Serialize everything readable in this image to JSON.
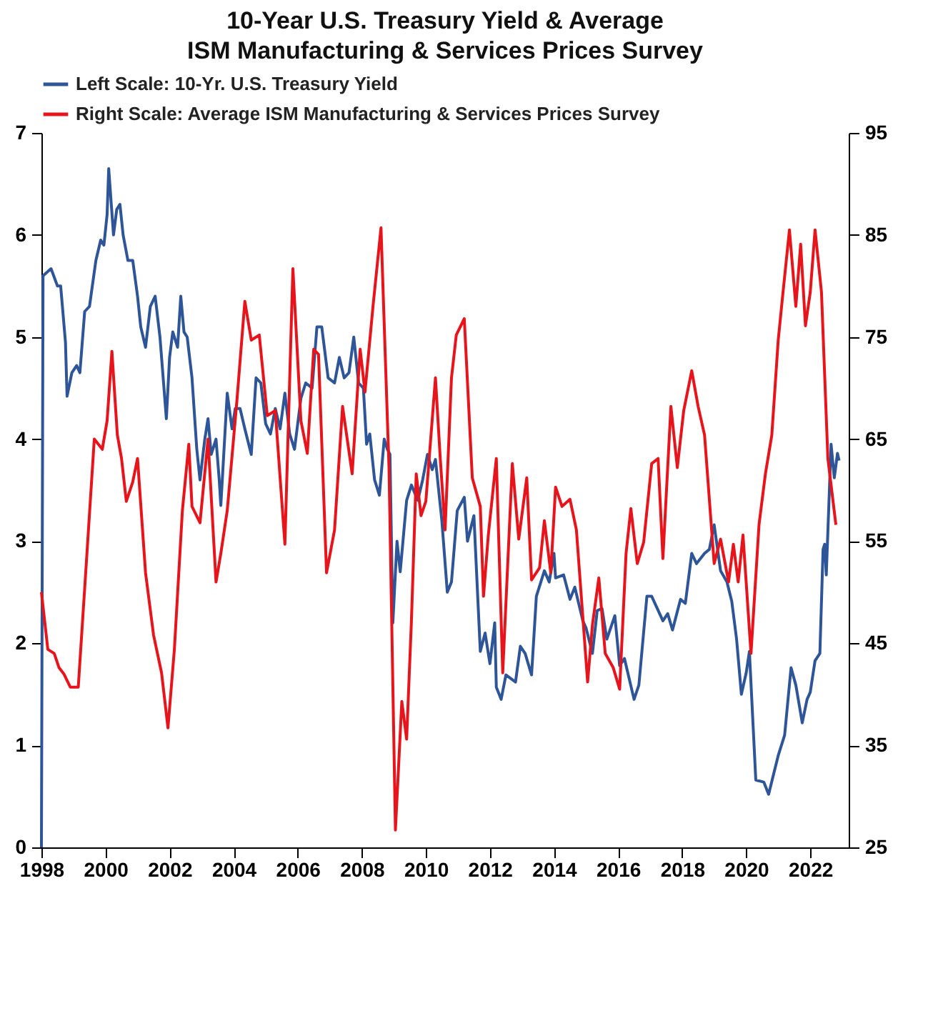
{
  "chart_data": {
    "type": "line",
    "title": "10-Year U.S. Treasury Yield & Average ISM Manufacturing & Services Prices Survey",
    "xlim": [
      1998,
      2023.2
    ],
    "xticks": [
      1998,
      2000,
      2002,
      2004,
      2006,
      2008,
      2010,
      2012,
      2014,
      2016,
      2018,
      2020,
      2022
    ],
    "ylim": [
      0,
      7
    ],
    "yticks": [
      0,
      1,
      2,
      3,
      4,
      5,
      6,
      7
    ],
    "y2lim": [
      25,
      95
    ],
    "y2ticks": [
      25,
      35,
      45,
      55,
      65,
      75,
      85,
      95
    ],
    "grid": false,
    "legend": "top",
    "line_style": "solid",
    "marker": "none",
    "series": [
      {
        "name": "Left Scale: 10-Yr. U.S. Treasury Yield",
        "color": "#2e5597",
        "axis": "y",
        "x": [
          1998.0,
          1998.05,
          1998.3,
          1998.5,
          1998.6,
          1998.75,
          1998.8,
          1998.95,
          1999.1,
          1999.2,
          1999.35,
          1999.5,
          1999.7,
          1999.85,
          1999.95,
          2000.05,
          2000.1,
          2000.25,
          2000.35,
          2000.45,
          2000.55,
          2000.7,
          2000.85,
          2001.0,
          2001.1,
          2001.25,
          2001.4,
          2001.55,
          2001.7,
          2001.9,
          2002.0,
          2002.1,
          2002.25,
          2002.35,
          2002.45,
          2002.55,
          2002.7,
          2002.85,
          2002.95,
          2003.1,
          2003.2,
          2003.3,
          2003.45,
          2003.55,
          2003.6,
          2003.8,
          2003.95,
          2004.05,
          2004.2,
          2004.35,
          2004.55,
          2004.7,
          2004.85,
          2005.0,
          2005.15,
          2005.3,
          2005.45,
          2005.6,
          2005.75,
          2005.9,
          2006.1,
          2006.25,
          2006.45,
          2006.6,
          2006.75,
          2006.95,
          2007.15,
          2007.3,
          2007.45,
          2007.6,
          2007.75,
          2007.9,
          2008.05,
          2008.15,
          2008.25,
          2008.4,
          2008.55,
          2008.7,
          2008.8,
          2008.88,
          2008.97,
          2009.1,
          2009.2,
          2009.4,
          2009.55,
          2009.75,
          2009.9,
          2010.05,
          2010.2,
          2010.3,
          2010.5,
          2010.67,
          2010.8,
          2010.98,
          2011.2,
          2011.3,
          2011.5,
          2011.7,
          2011.85,
          2012.0,
          2012.15,
          2012.2,
          2012.35,
          2012.5,
          2012.8,
          2012.95,
          2013.1,
          2013.3,
          2013.45,
          2013.7,
          2013.85,
          2014.0,
          2014.05,
          2014.3,
          2014.5,
          2014.65,
          2014.9,
          2015.0,
          2015.2,
          2015.35,
          2015.5,
          2015.65,
          2015.9,
          2016.05,
          2016.2,
          2016.5,
          2016.65,
          2016.9,
          2017.05,
          2017.4,
          2017.55,
          2017.7,
          2017.95,
          2018.1,
          2018.3,
          2018.45,
          2018.7,
          2018.85,
          2019.0,
          2019.2,
          2019.4,
          2019.55,
          2019.7,
          2019.85,
          2020.0,
          2020.1,
          2020.3,
          2020.55,
          2020.7,
          2020.85,
          2021.0,
          2021.2,
          2021.4,
          2021.55,
          2021.75,
          2021.9,
          2022.0,
          2022.15,
          2022.3,
          2022.4,
          2022.45,
          2022.5,
          2022.65,
          2022.75,
          2022.85,
          2022.9
        ],
        "values": [
          0,
          5.6,
          5.67,
          5.5,
          5.5,
          4.95,
          4.42,
          4.65,
          4.72,
          4.65,
          5.25,
          5.3,
          5.75,
          5.95,
          5.9,
          6.2,
          6.65,
          6.0,
          6.25,
          6.3,
          6.0,
          5.75,
          5.75,
          5.4,
          5.1,
          4.9,
          5.3,
          5.4,
          5.0,
          4.2,
          4.8,
          5.05,
          4.9,
          5.4,
          5.05,
          5.0,
          4.6,
          3.9,
          3.6,
          4.0,
          4.2,
          3.85,
          4.0,
          3.6,
          3.35,
          4.45,
          4.1,
          4.3,
          4.3,
          4.1,
          3.85,
          4.6,
          4.55,
          4.15,
          4.05,
          4.3,
          4.1,
          4.45,
          4.05,
          3.9,
          4.4,
          4.55,
          4.5,
          5.1,
          5.1,
          4.6,
          4.55,
          4.8,
          4.6,
          4.65,
          5.0,
          4.55,
          4.5,
          3.95,
          4.05,
          3.6,
          3.45,
          4.0,
          3.9,
          3.85,
          2.2,
          3.0,
          2.7,
          3.4,
          3.55,
          3.4,
          3.6,
          3.85,
          3.7,
          3.8,
          3.2,
          2.5,
          2.6,
          3.3,
          3.43,
          3.0,
          3.25,
          1.92,
          2.1,
          1.8,
          2.2,
          1.57,
          1.45,
          1.69,
          1.62,
          1.97,
          1.9,
          1.69,
          2.46,
          2.71,
          2.6,
          2.88,
          2.64,
          2.67,
          2.43,
          2.55,
          2.22,
          2.15,
          1.9,
          2.32,
          2.34,
          2.04,
          2.27,
          1.78,
          1.85,
          1.45,
          1.59,
          2.46,
          2.46,
          2.22,
          2.29,
          2.13,
          2.43,
          2.39,
          2.88,
          2.78,
          2.88,
          2.92,
          3.16,
          2.71,
          2.6,
          2.41,
          2.04,
          1.5,
          1.71,
          1.92,
          0.66,
          0.64,
          0.52,
          0.71,
          0.9,
          1.1,
          1.76,
          1.59,
          1.22,
          1.45,
          1.52,
          1.83,
          1.9,
          2.92,
          2.97,
          2.67,
          3.95,
          3.62,
          3.86,
          3.79
        ]
      },
      {
        "name": "Right Scale: Average ISM Manufacturing & Services Prices Survey",
        "color": "#e8141c",
        "axis": "y2",
        "x": [
          1998.0,
          1998.2,
          1998.4,
          1998.55,
          1998.7,
          1998.9,
          1999.15,
          1999.4,
          1999.65,
          1999.9,
          2000.05,
          2000.2,
          2000.37,
          2000.5,
          2000.65,
          2000.85,
          2001.0,
          2001.25,
          2001.5,
          2001.75,
          2001.95,
          2002.15,
          2002.4,
          2002.6,
          2002.7,
          2002.95,
          2003.2,
          2003.45,
          2003.6,
          2003.8,
          2004.1,
          2004.35,
          2004.55,
          2004.8,
          2005.05,
          2005.3,
          2005.6,
          2005.85,
          2006.1,
          2006.3,
          2006.5,
          2006.65,
          2006.9,
          2007.15,
          2007.4,
          2007.7,
          2007.95,
          2008.1,
          2008.35,
          2008.6,
          2008.85,
          2009.05,
          2009.25,
          2009.4,
          2009.55,
          2009.7,
          2009.85,
          2010.0,
          2010.3,
          2010.45,
          2010.6,
          2010.8,
          2010.95,
          2011.2,
          2011.45,
          2011.7,
          2011.8,
          2011.95,
          2012.2,
          2012.4,
          2012.7,
          2012.9,
          2013.15,
          2013.3,
          2013.55,
          2013.7,
          2013.9,
          2014.05,
          2014.25,
          2014.5,
          2014.7,
          2015.05,
          2015.2,
          2015.4,
          2015.6,
          2015.85,
          2016.05,
          2016.25,
          2016.4,
          2016.6,
          2016.8,
          2017.05,
          2017.25,
          2017.4,
          2017.65,
          2017.85,
          2018.05,
          2018.3,
          2018.5,
          2018.7,
          2019.0,
          2019.2,
          2019.45,
          2019.6,
          2019.75,
          2019.9,
          2020.15,
          2020.4,
          2020.6,
          2020.8,
          2021.0,
          2021.15,
          2021.35,
          2021.55,
          2021.7,
          2021.85,
          2022.0,
          2022.15,
          2022.35,
          2022.55,
          2022.8
        ],
        "values": [
          50.0,
          44.4,
          44.0,
          42.6,
          42.0,
          40.7,
          40.7,
          52.8,
          65.0,
          64.0,
          66.8,
          73.6,
          65.4,
          63.1,
          58.9,
          60.8,
          63.1,
          51.9,
          45.8,
          42.1,
          36.7,
          44.4,
          58.0,
          64.5,
          58.4,
          56.8,
          65.0,
          51.0,
          53.8,
          58.0,
          68.7,
          78.5,
          74.7,
          75.2,
          67.3,
          67.8,
          54.7,
          81.7,
          66.8,
          63.6,
          73.8,
          73.3,
          51.9,
          56.1,
          68.2,
          61.6,
          73.8,
          69.6,
          78.0,
          85.7,
          62.2,
          26.7,
          39.3,
          35.6,
          47.2,
          61.6,
          57.5,
          58.9,
          71.0,
          63.1,
          56.1,
          71.0,
          75.2,
          76.8,
          61.2,
          58.4,
          49.6,
          55.6,
          63.1,
          42.1,
          62.6,
          55.2,
          61.2,
          51.2,
          52.4,
          57.0,
          51.9,
          60.3,
          58.4,
          59.1,
          56.1,
          41.2,
          46.8,
          51.4,
          44.0,
          42.6,
          40.5,
          53.8,
          58.2,
          52.8,
          54.9,
          62.6,
          63.1,
          53.3,
          68.2,
          62.2,
          67.8,
          71.7,
          68.2,
          65.4,
          52.8,
          55.2,
          51.0,
          54.7,
          51.0,
          55.6,
          44.0,
          56.6,
          61.6,
          65.4,
          74.7,
          79.4,
          85.5,
          78.0,
          84.1,
          76.1,
          79.4,
          85.5,
          79.4,
          63.1,
          56.6
        ]
      }
    ]
  }
}
